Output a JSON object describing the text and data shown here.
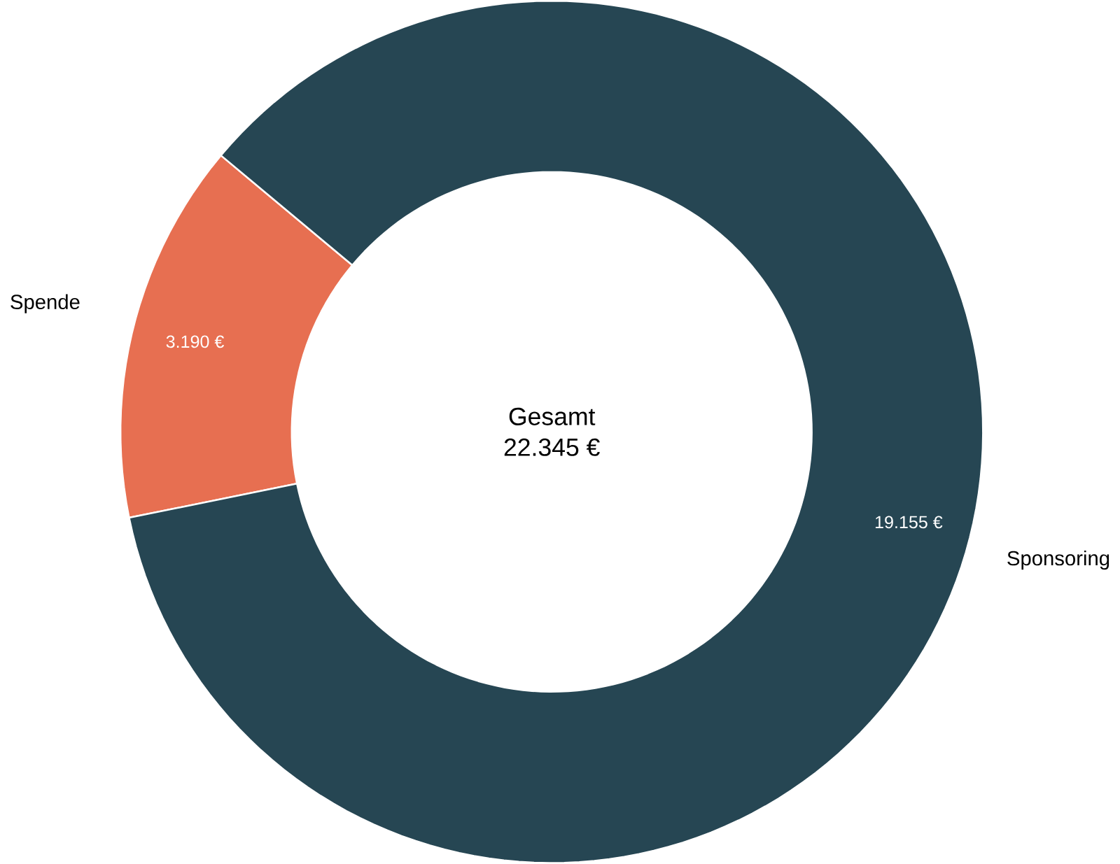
{
  "chart_data": {
    "type": "donut",
    "categories": [
      "Spende",
      "Sponsoring"
    ],
    "values": [
      3190,
      19155
    ],
    "colors": [
      "#e76f51",
      "#264653"
    ],
    "value_labels": [
      "3.190 €",
      "19.155 €"
    ],
    "annotations": [
      "Gesamt",
      "22.345 €"
    ]
  }
}
